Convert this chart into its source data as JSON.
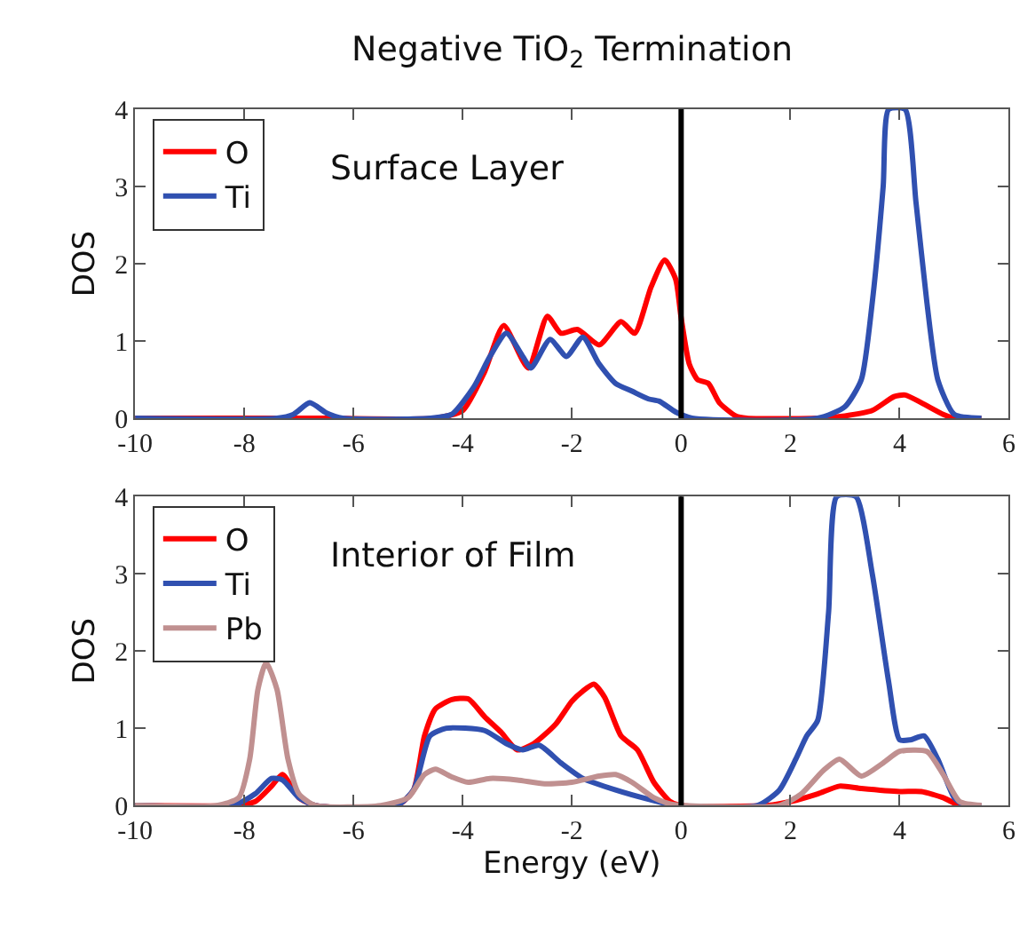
{
  "chart_data": [
    {
      "type": "line",
      "title": "Negative TiO$_{2}$ Termination",
      "ylabel": "DOS",
      "annotations": [
        "Surface Layer"
      ],
      "xlim": [
        -10,
        6
      ],
      "ylim": [
        0,
        4
      ],
      "xticks": [
        -10,
        -8,
        -6,
        -4,
        -2,
        0,
        2,
        4,
        6
      ],
      "yticks": [
        0,
        1,
        2,
        3,
        4
      ],
      "legend": "top left",
      "marker": "none",
      "line_style": "solid",
      "ref_lines": [
        {
          "axis": "x",
          "value": 0,
          "color": "#000000"
        }
      ],
      "series": [
        {
          "name": "O",
          "color": "#ff0000",
          "x": [
            -10,
            -7,
            -6.5,
            -4.5,
            -4,
            -3.6,
            -3.25,
            -2.8,
            -2.45,
            -2.2,
            -1.9,
            -1.5,
            -1.1,
            -0.85,
            -0.55,
            -0.3,
            -0.1,
            0,
            0.15,
            0.3,
            0.5,
            0.7,
            1.0,
            1.2,
            2.5,
            3.0,
            3.5,
            3.9,
            4.1,
            4.4,
            4.8,
            5.0,
            5.5
          ],
          "values": [
            0,
            0,
            0,
            0,
            0.1,
            0.6,
            1.2,
            0.65,
            1.32,
            1.1,
            1.15,
            0.95,
            1.25,
            1.1,
            1.7,
            2.05,
            1.8,
            1.3,
            0.7,
            0.5,
            0.45,
            0.2,
            0.03,
            0,
            0,
            0.03,
            0.1,
            0.28,
            0.3,
            0.2,
            0.05,
            0,
            0
          ]
        },
        {
          "name": "Ti",
          "color": "#3050b0",
          "x": [
            -10,
            -7.4,
            -7.1,
            -6.8,
            -6.5,
            -6.2,
            -4.6,
            -4.2,
            -3.8,
            -3.5,
            -3.2,
            -2.9,
            -2.75,
            -2.4,
            -2.1,
            -1.8,
            -1.5,
            -1.2,
            -0.9,
            -0.6,
            -0.4,
            -0.1,
            0.2,
            2.5,
            3.0,
            3.3,
            3.5,
            3.7,
            3.8,
            4.1,
            4.3,
            4.5,
            4.7,
            5.0,
            5.5
          ],
          "values": [
            0,
            0,
            0.05,
            0.2,
            0.07,
            0,
            0,
            0.05,
            0.4,
            0.8,
            1.1,
            0.8,
            0.65,
            1.02,
            0.8,
            1.05,
            0.7,
            0.45,
            0.35,
            0.25,
            0.22,
            0.08,
            0,
            0,
            0.15,
            0.5,
            1.5,
            3.0,
            4.0,
            4.0,
            2.8,
            1.5,
            0.5,
            0.05,
            0
          ]
        }
      ]
    },
    {
      "type": "line",
      "xlabel": "Energy (eV)",
      "ylabel": "DOS",
      "annotations": [
        "Interior of Film"
      ],
      "xlim": [
        -10,
        6
      ],
      "ylim": [
        0,
        4
      ],
      "xticks": [
        -10,
        -8,
        -6,
        -4,
        -2,
        0,
        2,
        4,
        6
      ],
      "yticks": [
        0,
        1,
        2,
        3,
        4
      ],
      "legend": "top left",
      "marker": "none",
      "line_style": "solid",
      "ref_lines": [
        {
          "axis": "x",
          "value": 0,
          "color": "#000000"
        }
      ],
      "series": [
        {
          "name": "O",
          "color": "#ff0000",
          "x": [
            -10,
            -8.2,
            -7.8,
            -7.5,
            -7.3,
            -7.0,
            -6.7,
            -5.2,
            -4.9,
            -4.7,
            -4.5,
            -4.2,
            -3.9,
            -3.6,
            -3.3,
            -3.0,
            -2.7,
            -2.3,
            -2.0,
            -1.8,
            -1.6,
            -1.4,
            -1.1,
            -0.8,
            -0.5,
            -0.2,
            0,
            1.6,
            2.0,
            2.5,
            2.9,
            3.3,
            4.0,
            4.4,
            4.8,
            5.1,
            5.5
          ],
          "values": [
            0,
            0,
            0.05,
            0.25,
            0.4,
            0.1,
            0,
            0,
            0.2,
            0.9,
            1.25,
            1.37,
            1.38,
            1.15,
            0.95,
            0.72,
            0.8,
            1.05,
            1.35,
            1.48,
            1.57,
            1.4,
            0.9,
            0.72,
            0.3,
            0.05,
            0,
            0,
            0.05,
            0.15,
            0.25,
            0.22,
            0.18,
            0.18,
            0.1,
            0,
            0
          ]
        },
        {
          "name": "Ti",
          "color": "#3050b0",
          "x": [
            -10,
            -8.2,
            -7.8,
            -7.5,
            -7.3,
            -7.0,
            -6.7,
            -5.2,
            -4.9,
            -4.6,
            -4.3,
            -3.6,
            -3.2,
            -2.9,
            -2.6,
            -2.2,
            -1.8,
            -1.2,
            -0.6,
            -0.1,
            1.4,
            1.8,
            2.1,
            2.3,
            2.5,
            2.7,
            2.85,
            3.2,
            3.5,
            3.8,
            4.0,
            4.2,
            4.45,
            4.7,
            5.0,
            5.2,
            5.5
          ],
          "values": [
            0,
            0,
            0.15,
            0.35,
            0.33,
            0.1,
            0,
            0,
            0.2,
            0.9,
            1.0,
            0.97,
            0.8,
            0.72,
            0.78,
            0.55,
            0.35,
            0.2,
            0.08,
            0,
            0,
            0.2,
            0.6,
            0.9,
            1.1,
            2.5,
            4.0,
            4.0,
            3.0,
            1.6,
            0.85,
            0.85,
            0.9,
            0.6,
            0.1,
            0,
            0
          ]
        },
        {
          "name": "Pb",
          "color": "#c09090",
          "x": [
            -10,
            -8.5,
            -8.1,
            -7.9,
            -7.75,
            -7.6,
            -7.4,
            -7.2,
            -7.0,
            -6.7,
            -5.5,
            -5.0,
            -4.7,
            -4.5,
            -4.2,
            -3.9,
            -3.5,
            -3.0,
            -2.5,
            -2.0,
            -1.5,
            -1.2,
            -0.9,
            -0.5,
            -0.2,
            0,
            1.8,
            2.2,
            2.6,
            2.9,
            3.3,
            3.7,
            4.0,
            4.5,
            4.8,
            5.1,
            5.5
          ],
          "values": [
            0,
            0,
            0.1,
            0.6,
            1.5,
            1.85,
            1.5,
            0.6,
            0.15,
            0,
            0,
            0.1,
            0.4,
            0.47,
            0.37,
            0.3,
            0.35,
            0.33,
            0.28,
            0.3,
            0.38,
            0.4,
            0.3,
            0.1,
            0.02,
            0,
            0,
            0.15,
            0.45,
            0.6,
            0.38,
            0.55,
            0.7,
            0.7,
            0.4,
            0.05,
            0
          ]
        }
      ]
    }
  ]
}
